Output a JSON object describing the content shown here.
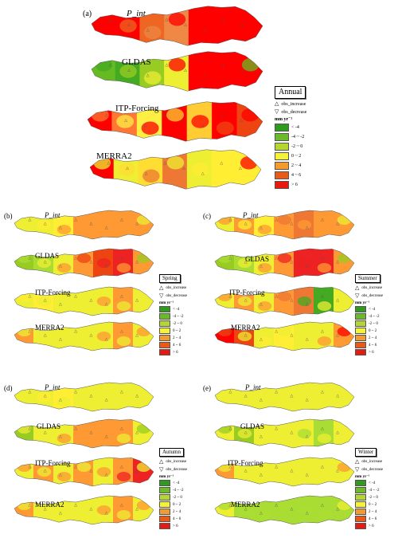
{
  "panels": [
    {
      "letter": "(a)",
      "season": "Annual",
      "maps": [
        {
          "label": "P_int",
          "italic": true,
          "scheme": [
            "#f00",
            "#f00",
            "#e62",
            "#e84",
            "#f00",
            "#f00",
            "#f00"
          ]
        },
        {
          "label": "GLDAS",
          "italic": false,
          "scheme": [
            "#6b2",
            "#4a2",
            "#9c2",
            "#ee3",
            "#f00",
            "#f00",
            "#f00"
          ]
        },
        {
          "label": "ITP-Forcing",
          "italic": false,
          "scheme": [
            "#f00",
            "#f73",
            "#fe4",
            "#f00",
            "#fc3",
            "#f00",
            "#e41"
          ]
        },
        {
          "label": "MERRA2",
          "italic": false,
          "scheme": [
            "#f00",
            "#ee3",
            "#fd3",
            "#e73",
            "#ee3",
            "#fe3",
            "#fe3"
          ]
        }
      ]
    },
    {
      "letter": "(b)",
      "season": "Spring",
      "maps": [
        {
          "label": "P_int",
          "italic": true,
          "scheme": [
            "#ee3",
            "#ee3",
            "#fe3",
            "#f93",
            "#f93",
            "#f93",
            "#f93"
          ]
        },
        {
          "label": "GLDAS",
          "italic": false,
          "scheme": [
            "#9c2",
            "#ad3",
            "#ee3",
            "#f93",
            "#e41",
            "#e22",
            "#f93"
          ]
        },
        {
          "label": "ITP-Forcing",
          "italic": false,
          "scheme": [
            "#ee3",
            "#fe3",
            "#ee3",
            "#ee3",
            "#ee3",
            "#f93",
            "#ee3"
          ]
        },
        {
          "label": "MERRA2",
          "italic": false,
          "scheme": [
            "#f93",
            "#ee3",
            "#ee3",
            "#ee3",
            "#ee3",
            "#f93",
            "#ee3"
          ]
        }
      ]
    },
    {
      "letter": "(c)",
      "season": "Summer",
      "maps": [
        {
          "label": "P_int",
          "italic": true,
          "scheme": [
            "#ee3",
            "#f93",
            "#fe3",
            "#f93",
            "#e73",
            "#f93",
            "#f93"
          ]
        },
        {
          "label": "GLDAS",
          "italic": false,
          "scheme": [
            "#9c2",
            "#ad3",
            "#ee3",
            "#f93",
            "#e22",
            "#e22",
            "#f93"
          ]
        },
        {
          "label": "ITP-Forcing",
          "italic": false,
          "scheme": [
            "#ee3",
            "#f93",
            "#ee3",
            "#f93",
            "#e73",
            "#4a2",
            "#ee3"
          ]
        },
        {
          "label": "MERRA2",
          "italic": false,
          "scheme": [
            "#f00",
            "#e41",
            "#ee3",
            "#fe3",
            "#ee3",
            "#ee3",
            "#f93"
          ]
        }
      ]
    },
    {
      "letter": "(d)",
      "season": "Autumn",
      "maps": [
        {
          "label": "P_int",
          "italic": true,
          "scheme": [
            "#ee3",
            "#ee3",
            "#fe3",
            "#ee3",
            "#ee3",
            "#ee3",
            "#ee3"
          ]
        },
        {
          "label": "GLDAS",
          "italic": false,
          "scheme": [
            "#9c2",
            "#ee3",
            "#ee3",
            "#f93",
            "#f93",
            "#f93",
            "#ee3"
          ]
        },
        {
          "label": "ITP-Forcing",
          "italic": false,
          "scheme": [
            "#ee3",
            "#f93",
            "#ee3",
            "#f93",
            "#ee3",
            "#f93",
            "#e22"
          ]
        },
        {
          "label": "MERRA2",
          "italic": false,
          "scheme": [
            "#f93",
            "#ee3",
            "#ee3",
            "#ee3",
            "#ee3",
            "#f93",
            "#ee3"
          ]
        }
      ]
    },
    {
      "letter": "(e)",
      "season": "Winter",
      "maps": [
        {
          "label": "P_int",
          "italic": true,
          "scheme": [
            "#ee3",
            "#ee3",
            "#ee3",
            "#ee3",
            "#ee3",
            "#ee3",
            "#ee3"
          ]
        },
        {
          "label": "GLDAS",
          "italic": false,
          "scheme": [
            "#ee3",
            "#9c2",
            "#ee3",
            "#ee3",
            "#ee3",
            "#ad3",
            "#ee3"
          ]
        },
        {
          "label": "ITP-Forcing",
          "italic": false,
          "scheme": [
            "#f93",
            "#ee3",
            "#ee3",
            "#ee3",
            "#ee3",
            "#ee3",
            "#ee3"
          ]
        },
        {
          "label": "MERRA2",
          "italic": false,
          "scheme": [
            "#ee3",
            "#ad3",
            "#ad3",
            "#ad3",
            "#ad3",
            "#ad3",
            "#ad3"
          ]
        }
      ]
    }
  ],
  "legend": {
    "obs_increase": "obs_increase",
    "obs_decrease": "obs_decrease",
    "unit": "mm yr⁻¹",
    "classes": [
      {
        "label": "< -4",
        "color": "#2e9b1f"
      },
      {
        "label": "-4 ~ -2",
        "color": "#6cb929"
      },
      {
        "label": "-2 ~ 0",
        "color": "#b5d631"
      },
      {
        "label": "0 ~ 2",
        "color": "#f5f23c"
      },
      {
        "label": "2 ~ 4",
        "color": "#f59a2e"
      },
      {
        "label": "4 ~ 6",
        "color": "#e85a1a"
      },
      {
        "label": "> 6",
        "color": "#e81a10"
      }
    ]
  }
}
